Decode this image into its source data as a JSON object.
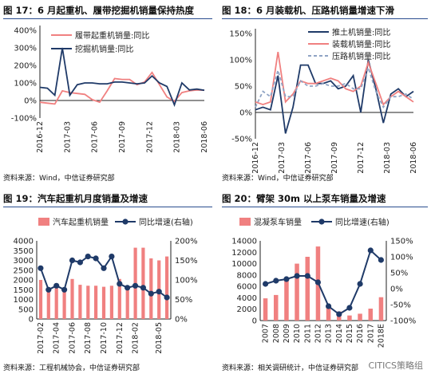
{
  "panels": [
    {
      "title": "图 17：6 月起重机、履带挖掘机销量保持热度",
      "source": "资料来源：Wind，中信证券研究部"
    },
    {
      "title": "图 18：6 月装载机、压路机销量增速下滑",
      "source": "资料来源：Wind，中信证券研究部"
    },
    {
      "title": "图 19：汽车起重机月度销量及增速",
      "source": "资料来源：工程机械协会，中信证券研究部"
    },
    {
      "title": "图 20：臂架 30m 以上泵车销量及增速",
      "source": "资料来源：相关调研统计，中信证券研究部"
    }
  ],
  "watermark": "CITICS策略组",
  "colors": {
    "navy": "#1f3a68",
    "pink": "#f08080",
    "gray": "#8fa3c4",
    "axis": "#222222",
    "title_rule": "#2a4d8f"
  },
  "chart_data": [
    {
      "type": "line",
      "title": "图 17：6 月起重机、履带挖掘机销量保持热度",
      "x_ticks": [
        "2016-12",
        "2017-03",
        "2017-06",
        "2017-09",
        "2017-12",
        "2018-03",
        "2018-06"
      ],
      "y_ticks": [
        "0%",
        "100%",
        "200%",
        "300%",
        "400%"
      ],
      "y_ticks_extra": [
        "-100%"
      ],
      "ylim": [
        -100,
        400
      ],
      "legend_position": "upper-left",
      "series": [
        {
          "name": "履带起重机销量:同比",
          "color": "#f08080",
          "values": [
            -10,
            -15,
            -20,
            55,
            45,
            40,
            35,
            5,
            -10,
            55,
            125,
            120,
            120,
            90,
            105,
            160,
            90,
            20,
            -5,
            45,
            55,
            60,
            58
          ]
        },
        {
          "name": "挖掘机销量:同比",
          "color": "#1f3a68",
          "values": [
            75,
            70,
            30,
            300,
            30,
            90,
            100,
            100,
            95,
            95,
            105,
            105,
            100,
            95,
            100,
            140,
            100,
            80,
            -25,
            100,
            60,
            65,
            58
          ]
        }
      ]
    },
    {
      "type": "line",
      "title": "图 18：6 月装载机、压路机销量增速下滑",
      "x_ticks": [
        "2016-12",
        "2017-03",
        "2017-06",
        "2017-09",
        "2017-12",
        "2018-03",
        "2018-06"
      ],
      "y_ticks": [
        "-50%",
        "0%",
        "50%",
        "100%",
        "150%"
      ],
      "ylim": [
        -50,
        150
      ],
      "legend_position": "top-right",
      "series": [
        {
          "name": "推土机销量:同比",
          "color": "#1f3a68",
          "dash": "solid",
          "values": [
            5,
            10,
            5,
            70,
            -40,
            10,
            90,
            90,
            55,
            55,
            60,
            45,
            50,
            70,
            0,
            100,
            45,
            -20,
            35,
            45,
            30,
            40
          ]
        },
        {
          "name": "装载机销量:同比",
          "color": "#f08080",
          "dash": "solid",
          "values": [
            20,
            15,
            20,
            115,
            20,
            35,
            60,
            55,
            55,
            60,
            65,
            60,
            45,
            40,
            50,
            95,
            55,
            15,
            30,
            40,
            30,
            20
          ]
        },
        {
          "name": "压路机销量:同比",
          "color": "#8fa3c4",
          "dash": "dashed",
          "values": [
            10,
            40,
            30,
            80,
            30,
            30,
            60,
            50,
            50,
            55,
            50,
            50,
            55,
            45,
            45,
            85,
            40,
            10,
            30,
            30,
            35,
            25
          ]
        }
      ]
    },
    {
      "type": "bar",
      "title": "图 19：汽车起重机月度销量及增速",
      "categories": [
        "2017-02",
        "2017-03",
        "2017-04",
        "2017-05",
        "2017-06",
        "2017-07",
        "2017-08",
        "2017-09",
        "2017-10",
        "2017-11",
        "2017-12",
        "2018-01",
        "2018-02",
        "2018-03",
        "2018-04",
        "2018-05",
        "2018-06"
      ],
      "x_ticks": [
        "2017-02",
        "2017-04",
        "2017-06",
        "2017-08",
        "2017-10",
        "2017-12",
        "2018-02",
        "2018-05"
      ],
      "y_left_ticks": [
        "0",
        "500",
        "1000",
        "1500",
        "2000",
        "2500",
        "3000",
        "3500",
        "4000"
      ],
      "y_right_ticks": [
        "0%",
        "50%",
        "100%",
        "150%",
        "200%"
      ],
      "ylim_left": [
        0,
        4000
      ],
      "ylim_right": [
        0,
        200
      ],
      "legend_position": "top",
      "series": [
        {
          "name": "汽车起重机销量",
          "kind": "bar",
          "axis": "left",
          "color": "#f08080",
          "values": [
            2000,
            1600,
            1700,
            1550,
            2050,
            1750,
            1700,
            1700,
            1650,
            1700,
            2050,
            1650,
            3650,
            3650,
            3100,
            3000,
            3200
          ]
        },
        {
          "name": "同比增速(右轴)",
          "kind": "line",
          "axis": "right",
          "color": "#1f3a68",
          "values": [
            130,
            75,
            85,
            75,
            150,
            145,
            160,
            155,
            130,
            160,
            90,
            80,
            85,
            80,
            65,
            70,
            55
          ]
        }
      ]
    },
    {
      "type": "bar",
      "title": "图 20：臂架 30m 以上泵车销量及增速",
      "categories": [
        "2007",
        "2008",
        "2009",
        "2010",
        "2011",
        "2012",
        "2013",
        "2014",
        "2015",
        "2016",
        "2017",
        "2018E"
      ],
      "y_left_ticks": [
        "0",
        "2000",
        "4000",
        "6000",
        "8000",
        "10000",
        "12000",
        "14000"
      ],
      "y_right_ticks": [
        "-100%",
        "-50%",
        "0%",
        "50%",
        "100%",
        "150%"
      ],
      "ylim_left": [
        0,
        14000
      ],
      "ylim_right": [
        -100,
        150
      ],
      "legend_position": "top",
      "series": [
        {
          "name": "混凝泵车销量",
          "kind": "bar",
          "axis": "left",
          "color": "#f08080",
          "values": [
            3900,
            4500,
            7000,
            10000,
            11200,
            13000,
            2300,
            1600,
            900,
            1200,
            2100,
            4100
          ]
        },
        {
          "name": "同比增速(右轴)",
          "kind": "line",
          "axis": "right",
          "color": "#1f3a68",
          "values": [
            15,
            25,
            30,
            40,
            40,
            20,
            -55,
            -80,
            -60,
            15,
            120,
            90
          ]
        }
      ]
    }
  ]
}
